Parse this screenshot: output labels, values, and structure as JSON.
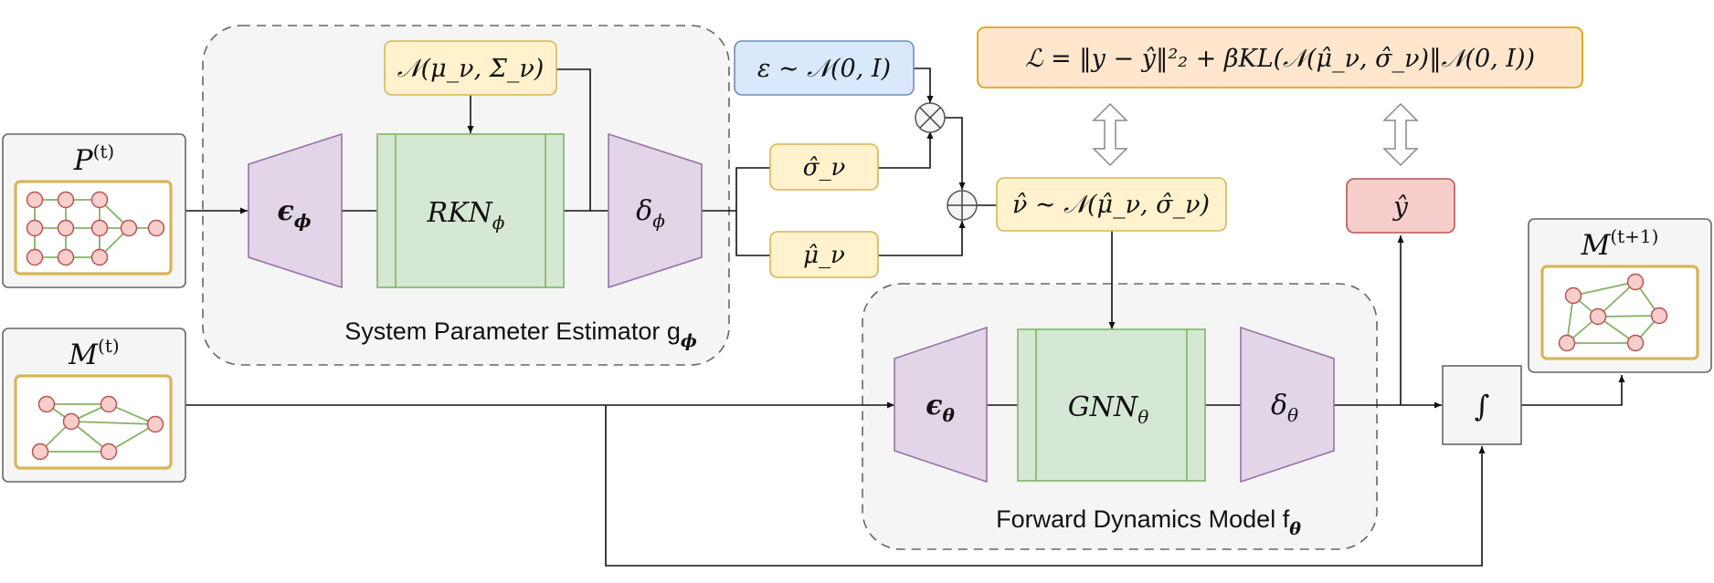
{
  "modules": {
    "estimator": {
      "label": "System Parameter Estimator g",
      "label_sub": "ϕ",
      "encoder": {
        "sym": "ϵ",
        "sub": "ϕ"
      },
      "core": {
        "sym": "RKN",
        "sub": "ϕ"
      },
      "decoder": {
        "sym": "δ",
        "sub": "ϕ"
      }
    },
    "dynamics": {
      "label": "Forward Dynamics Model f",
      "label_sub": "θ",
      "encoder": {
        "sym": "ϵ",
        "sub": "θ"
      },
      "core": {
        "sym": "GNN",
        "sub": "θ"
      },
      "decoder": {
        "sym": "δ",
        "sub": "θ"
      }
    }
  },
  "inputs": {
    "p": {
      "sym": "P",
      "sup": "(t)"
    },
    "m": {
      "sym": "M",
      "sup": "(t)"
    },
    "m_next": {
      "sym": "M",
      "sup": "(t+1)"
    }
  },
  "boxes": {
    "prior": "𝒩(μ_ν, Σ_ν)",
    "noise": "ε ∼ 𝒩(0, I)",
    "sigma_hat": "σ̂_ν",
    "mu_hat": "μ̂_ν",
    "nu_hat": "ν̂ ∼ 𝒩(μ̂_ν, σ̂_ν)",
    "y_hat": "ŷ",
    "loss": "ℒ = ‖y − ŷ‖²₂ + βKL(𝒩(μ̂_ν, σ̂_ν)‖𝒩(0, I))",
    "integrator": "∫"
  },
  "operators": {
    "multiply": "⊗",
    "add": "⊕"
  },
  "colors": {
    "purple_fill": "#e1d5e7",
    "purple_stroke": "#9673a6",
    "green_fill": "#d5e8d4",
    "green_stroke": "#82b366",
    "yellow_fill": "#fff2cc",
    "yellow_stroke": "#d6b656",
    "blue_fill": "#dae8fc",
    "blue_stroke": "#6c8ebf",
    "red_fill": "#f8cecc",
    "red_stroke": "#b85450",
    "orange_fill": "#ffe6cc",
    "orange_stroke": "#d79b00",
    "gray_fill": "#f5f5f5",
    "gray_stroke": "#666666"
  }
}
